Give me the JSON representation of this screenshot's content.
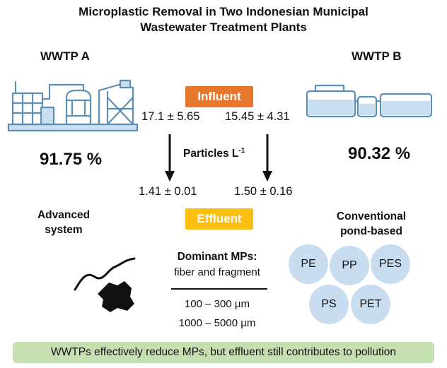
{
  "title_line1": "Microplastic Removal in Two Indonesian Municipal",
  "title_line2": "Wastewater Treatment Plants",
  "plant_a": {
    "label": "WWTP A",
    "removal": "91.75 %",
    "system_line1": "Advanced",
    "system_line2": "system",
    "influent": "17.1 ± 5.65",
    "effluent": "1.41 ± 0.01"
  },
  "plant_b": {
    "label": "WWTP B",
    "removal": "90.32 %",
    "system_line1": "Conventional",
    "system_line2": "pond-based",
    "influent": "15.45 ± 4.31",
    "effluent": "1.50 ± 0.16"
  },
  "influent_label": "Influent",
  "effluent_label": "Effluent",
  "units_text": "Particles L",
  "units_sup": "-1",
  "dominant_heading": "Dominant MPs:",
  "dominant_types": "fiber and fragment",
  "size_range_1": "100 – 300 µm",
  "size_range_2": "1000 – 5000 µm",
  "polymers": [
    "PE",
    "PP",
    "PES",
    "PS",
    "PET"
  ],
  "footer": "WWTPs effectively reduce MPs, but effluent still contributes to pollution",
  "colors": {
    "influent": "#e8772e",
    "effluent": "#fbbf10",
    "bubble": "#c8ddef",
    "footer": "#c6dfb1",
    "icon_line": "#5b8fb5",
    "icon_fill": "#c9def0"
  }
}
